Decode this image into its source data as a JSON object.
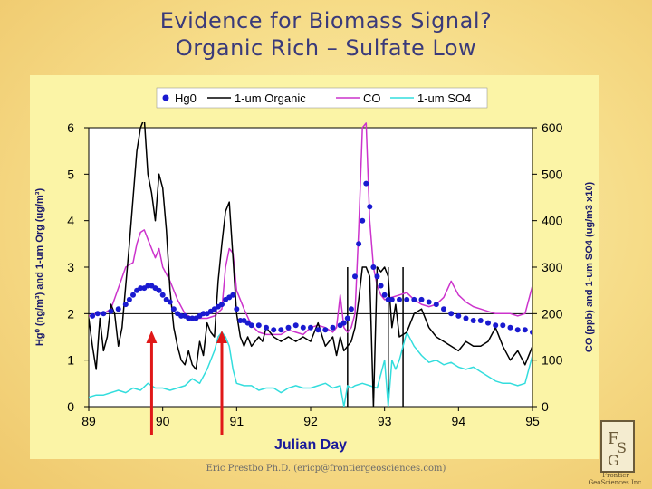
{
  "slide": {
    "title_line1": "Evidence for Biomass Signal?",
    "title_line2": "Organic Rich – Sulfate Low",
    "footer": "Eric Prestbo Ph.D. (ericp@frontiergeosciences.com)",
    "logo_mark": "FGS",
    "logo_text_line1": "Frontier",
    "logo_text_line2": "GeoSciences Inc."
  },
  "colors": {
    "hg0": "#1a1ad0",
    "organic": "#000000",
    "co": "#cc33cc",
    "so4": "#33dddd",
    "arrow": "#e01818",
    "axis_text": "#000000",
    "xlabel": "#1a1a9a"
  },
  "chart_data": {
    "type": "line",
    "xlabel": "Julian Day",
    "ylabel_left": "Hg⁰ (ng/m³) and 1-um Org (ug/m³)",
    "ylabel_right": "CO (ppb) and 1-um SO4 (ug/m3 x10)",
    "xlim": [
      89,
      95
    ],
    "ylim_left": [
      0,
      6
    ],
    "ylim_right": [
      0,
      600
    ],
    "x_ticks": [
      "89",
      "90",
      "91",
      "92",
      "93",
      "94",
      "95"
    ],
    "y_ticks_left": [
      "0",
      "1",
      "2",
      "3",
      "4",
      "5",
      "6"
    ],
    "y_ticks_right": [
      "0",
      "100",
      "200",
      "300",
      "400",
      "500",
      "600"
    ],
    "grid": false,
    "reference_line_left": 2.0,
    "legend_position": "top",
    "legend": [
      "Hg0",
      "1-um Organic",
      "CO",
      "1-um SO4"
    ],
    "series": [
      {
        "name": "1-um Organic",
        "axis": "left",
        "style": "line",
        "x": [
          89.0,
          89.05,
          89.1,
          89.15,
          89.2,
          89.25,
          89.3,
          89.35,
          89.4,
          89.45,
          89.5,
          89.55,
          89.6,
          89.65,
          89.7,
          89.75,
          89.8,
          89.85,
          89.9,
          89.95,
          90.0,
          90.05,
          90.1,
          90.15,
          90.2,
          90.25,
          90.3,
          90.35,
          90.4,
          90.45,
          90.5,
          90.55,
          90.6,
          90.65,
          90.7,
          90.75,
          90.8,
          90.85,
          90.9,
          90.95,
          91.0,
          91.05,
          91.1,
          91.15,
          91.2,
          91.25,
          91.3,
          91.35,
          91.4,
          91.5,
          91.6,
          91.7,
          91.8,
          91.9,
          92.0,
          92.1,
          92.2,
          92.3,
          92.35,
          92.4,
          92.45,
          92.5,
          92.55,
          92.6,
          92.65,
          92.7,
          92.75,
          92.8,
          92.85,
          92.9,
          92.95,
          93.0,
          93.05,
          93.1,
          93.15,
          93.2,
          93.3,
          93.4,
          93.5,
          93.6,
          93.7,
          93.8,
          93.9,
          94.0,
          94.1,
          94.2,
          94.3,
          94.4,
          94.5,
          94.6,
          94.7,
          94.8,
          94.9,
          95.0
        ],
        "y": [
          1.9,
          1.3,
          0.8,
          1.9,
          1.2,
          1.5,
          2.2,
          2.0,
          1.3,
          1.7,
          2.6,
          3.5,
          4.5,
          5.5,
          6.0,
          6.2,
          5.0,
          4.6,
          4.0,
          5.0,
          4.7,
          3.8,
          2.5,
          1.7,
          1.3,
          1.0,
          0.9,
          1.2,
          0.9,
          0.8,
          1.4,
          1.1,
          1.8,
          1.6,
          1.5,
          2.7,
          3.5,
          4.2,
          4.4,
          3.2,
          2.0,
          1.5,
          1.3,
          1.5,
          1.3,
          1.4,
          1.5,
          1.4,
          1.7,
          1.5,
          1.4,
          1.5,
          1.4,
          1.5,
          1.4,
          1.8,
          1.3,
          1.5,
          1.1,
          1.5,
          1.2,
          1.3,
          1.4,
          1.7,
          2.3,
          3.0,
          3.0,
          2.8,
          0.0,
          3.0,
          2.9,
          3.0,
          2.8,
          1.7,
          2.2,
          1.5,
          1.6,
          2.0,
          2.1,
          1.7,
          1.5,
          1.4,
          1.3,
          1.2,
          1.4,
          1.3,
          1.3,
          1.4,
          1.7,
          1.3,
          1.0,
          1.2,
          0.9,
          1.3
        ]
      },
      {
        "name": "CO",
        "axis": "right",
        "style": "line",
        "x": [
          89.0,
          89.1,
          89.2,
          89.3,
          89.4,
          89.5,
          89.6,
          89.65,
          89.7,
          89.75,
          89.8,
          89.85,
          89.9,
          89.95,
          90.0,
          90.1,
          90.2,
          90.3,
          90.4,
          90.5,
          90.6,
          90.7,
          90.8,
          90.85,
          90.9,
          90.95,
          91.0,
          91.1,
          91.2,
          91.3,
          91.4,
          91.5,
          91.6,
          91.7,
          91.8,
          91.9,
          92.0,
          92.1,
          92.2,
          92.3,
          92.35,
          92.4,
          92.45,
          92.5,
          92.55,
          92.6,
          92.65,
          92.7,
          92.75,
          92.8,
          92.85,
          92.9,
          92.95,
          93.0,
          93.1,
          93.2,
          93.3,
          93.4,
          93.5,
          93.6,
          93.7,
          93.8,
          93.9,
          94.0,
          94.1,
          94.2,
          94.3,
          94.4,
          94.5,
          94.6,
          94.7,
          94.8,
          94.9,
          95.0
        ],
        "y": [
          195,
          200,
          200,
          210,
          255,
          300,
          310,
          350,
          375,
          380,
          360,
          340,
          320,
          340,
          300,
          270,
          230,
          200,
          190,
          190,
          190,
          195,
          210,
          300,
          340,
          330,
          250,
          210,
          175,
          160,
          155,
          155,
          155,
          165,
          160,
          155,
          170,
          175,
          170,
          160,
          170,
          240,
          170,
          160,
          170,
          200,
          380,
          600,
          610,
          400,
          300,
          260,
          240,
          230,
          235,
          240,
          245,
          230,
          220,
          215,
          220,
          235,
          270,
          240,
          225,
          215,
          210,
          205,
          200,
          200,
          200,
          195,
          200,
          260
        ]
      },
      {
        "name": "1-um SO4",
        "axis": "right",
        "style": "line",
        "x": [
          89.0,
          89.1,
          89.2,
          89.3,
          89.4,
          89.5,
          89.6,
          89.7,
          89.8,
          89.9,
          90.0,
          90.1,
          90.2,
          90.3,
          90.4,
          90.5,
          90.6,
          90.7,
          90.75,
          90.8,
          90.85,
          90.9,
          90.95,
          91.0,
          91.1,
          91.2,
          91.3,
          91.4,
          91.5,
          91.6,
          91.7,
          91.8,
          91.9,
          92.0,
          92.1,
          92.2,
          92.3,
          92.4,
          92.45,
          92.5,
          92.55,
          92.6,
          92.7,
          92.8,
          92.9,
          93.0,
          93.05,
          93.1,
          93.15,
          93.2,
          93.3,
          93.4,
          93.5,
          93.6,
          93.7,
          93.8,
          93.9,
          94.0,
          94.1,
          94.2,
          94.3,
          94.4,
          94.5,
          94.6,
          94.7,
          94.8,
          94.9,
          95.0
        ],
        "y": [
          20,
          25,
          25,
          30,
          35,
          30,
          40,
          35,
          50,
          40,
          40,
          35,
          40,
          45,
          60,
          50,
          80,
          120,
          150,
          160,
          150,
          130,
          80,
          50,
          45,
          45,
          35,
          40,
          40,
          30,
          40,
          45,
          40,
          40,
          45,
          50,
          40,
          45,
          0,
          45,
          40,
          45,
          50,
          45,
          40,
          100,
          0,
          100,
          80,
          100,
          160,
          130,
          110,
          95,
          100,
          90,
          95,
          85,
          80,
          85,
          75,
          65,
          55,
          50,
          50,
          45,
          50,
          110
        ]
      },
      {
        "name": "Hg0",
        "axis": "left",
        "style": "points",
        "x": [
          89.05,
          89.12,
          89.2,
          89.3,
          89.4,
          89.5,
          89.55,
          89.6,
          89.65,
          89.7,
          89.75,
          89.8,
          89.85,
          89.9,
          89.95,
          90.0,
          90.05,
          90.1,
          90.15,
          90.2,
          90.25,
          90.3,
          90.35,
          90.4,
          90.45,
          90.5,
          90.55,
          90.6,
          90.65,
          90.7,
          90.75,
          90.8,
          90.85,
          90.9,
          90.95,
          91.0,
          91.05,
          91.1,
          91.15,
          91.2,
          91.3,
          91.4,
          91.5,
          91.6,
          91.7,
          91.8,
          91.9,
          92.0,
          92.1,
          92.2,
          92.3,
          92.4,
          92.45,
          92.5,
          92.55,
          92.6,
          92.65,
          92.7,
          92.75,
          92.8,
          92.85,
          92.9,
          92.95,
          93.0,
          93.05,
          93.1,
          93.2,
          93.3,
          93.4,
          93.5,
          93.6,
          93.7,
          93.8,
          93.9,
          94.0,
          94.1,
          94.2,
          94.3,
          94.4,
          94.5,
          94.6,
          94.7,
          94.8,
          94.9,
          95.0
        ],
        "y": [
          1.95,
          2.0,
          2.0,
          2.05,
          2.1,
          2.2,
          2.3,
          2.4,
          2.5,
          2.55,
          2.55,
          2.6,
          2.6,
          2.55,
          2.5,
          2.4,
          2.3,
          2.25,
          2.1,
          2.0,
          1.95,
          1.95,
          1.9,
          1.9,
          1.9,
          1.95,
          2.0,
          2.0,
          2.05,
          2.1,
          2.15,
          2.2,
          2.3,
          2.35,
          2.4,
          2.1,
          1.85,
          1.85,
          1.8,
          1.75,
          1.75,
          1.7,
          1.65,
          1.65,
          1.7,
          1.75,
          1.7,
          1.7,
          1.65,
          1.65,
          1.7,
          1.75,
          1.8,
          1.9,
          2.1,
          2.8,
          3.5,
          4.0,
          4.8,
          4.3,
          3.0,
          2.8,
          2.6,
          2.4,
          2.3,
          2.3,
          2.3,
          2.3,
          2.3,
          2.3,
          2.25,
          2.2,
          2.1,
          2.0,
          1.95,
          1.9,
          1.85,
          1.85,
          1.8,
          1.75,
          1.75,
          1.7,
          1.65,
          1.65,
          1.6
        ]
      }
    ],
    "vertical_markers": [
      92.5,
      93.05,
      93.25
    ],
    "arrows_at_x": [
      89.85,
      90.8
    ]
  }
}
